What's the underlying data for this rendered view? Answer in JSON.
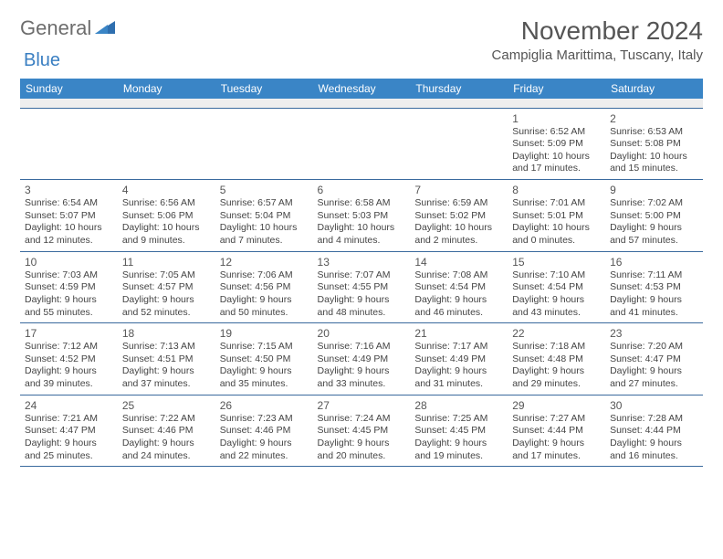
{
  "logo": {
    "word1": "General",
    "word2": "Blue"
  },
  "title": "November 2024",
  "location": "Campiglia Marittima, Tuscany, Italy",
  "colors": {
    "header_bg": "#3a85c6",
    "header_text": "#ffffff",
    "rule": "#3a6a9e",
    "logo_gray": "#6d6d6d",
    "logo_blue": "#3a7fc2",
    "spacer_bg": "#eeeeee"
  },
  "day_headers": [
    "Sunday",
    "Monday",
    "Tuesday",
    "Wednesday",
    "Thursday",
    "Friday",
    "Saturday"
  ],
  "weeks": [
    [
      null,
      null,
      null,
      null,
      null,
      {
        "n": "1",
        "sunrise": "6:52 AM",
        "sunset": "5:09 PM",
        "daylight": "10 hours and 17 minutes."
      },
      {
        "n": "2",
        "sunrise": "6:53 AM",
        "sunset": "5:08 PM",
        "daylight": "10 hours and 15 minutes."
      }
    ],
    [
      {
        "n": "3",
        "sunrise": "6:54 AM",
        "sunset": "5:07 PM",
        "daylight": "10 hours and 12 minutes."
      },
      {
        "n": "4",
        "sunrise": "6:56 AM",
        "sunset": "5:06 PM",
        "daylight": "10 hours and 9 minutes."
      },
      {
        "n": "5",
        "sunrise": "6:57 AM",
        "sunset": "5:04 PM",
        "daylight": "10 hours and 7 minutes."
      },
      {
        "n": "6",
        "sunrise": "6:58 AM",
        "sunset": "5:03 PM",
        "daylight": "10 hours and 4 minutes."
      },
      {
        "n": "7",
        "sunrise": "6:59 AM",
        "sunset": "5:02 PM",
        "daylight": "10 hours and 2 minutes."
      },
      {
        "n": "8",
        "sunrise": "7:01 AM",
        "sunset": "5:01 PM",
        "daylight": "10 hours and 0 minutes."
      },
      {
        "n": "9",
        "sunrise": "7:02 AM",
        "sunset": "5:00 PM",
        "daylight": "9 hours and 57 minutes."
      }
    ],
    [
      {
        "n": "10",
        "sunrise": "7:03 AM",
        "sunset": "4:59 PM",
        "daylight": "9 hours and 55 minutes."
      },
      {
        "n": "11",
        "sunrise": "7:05 AM",
        "sunset": "4:57 PM",
        "daylight": "9 hours and 52 minutes."
      },
      {
        "n": "12",
        "sunrise": "7:06 AM",
        "sunset": "4:56 PM",
        "daylight": "9 hours and 50 minutes."
      },
      {
        "n": "13",
        "sunrise": "7:07 AM",
        "sunset": "4:55 PM",
        "daylight": "9 hours and 48 minutes."
      },
      {
        "n": "14",
        "sunrise": "7:08 AM",
        "sunset": "4:54 PM",
        "daylight": "9 hours and 46 minutes."
      },
      {
        "n": "15",
        "sunrise": "7:10 AM",
        "sunset": "4:54 PM",
        "daylight": "9 hours and 43 minutes."
      },
      {
        "n": "16",
        "sunrise": "7:11 AM",
        "sunset": "4:53 PM",
        "daylight": "9 hours and 41 minutes."
      }
    ],
    [
      {
        "n": "17",
        "sunrise": "7:12 AM",
        "sunset": "4:52 PM",
        "daylight": "9 hours and 39 minutes."
      },
      {
        "n": "18",
        "sunrise": "7:13 AM",
        "sunset": "4:51 PM",
        "daylight": "9 hours and 37 minutes."
      },
      {
        "n": "19",
        "sunrise": "7:15 AM",
        "sunset": "4:50 PM",
        "daylight": "9 hours and 35 minutes."
      },
      {
        "n": "20",
        "sunrise": "7:16 AM",
        "sunset": "4:49 PM",
        "daylight": "9 hours and 33 minutes."
      },
      {
        "n": "21",
        "sunrise": "7:17 AM",
        "sunset": "4:49 PM",
        "daylight": "9 hours and 31 minutes."
      },
      {
        "n": "22",
        "sunrise": "7:18 AM",
        "sunset": "4:48 PM",
        "daylight": "9 hours and 29 minutes."
      },
      {
        "n": "23",
        "sunrise": "7:20 AM",
        "sunset": "4:47 PM",
        "daylight": "9 hours and 27 minutes."
      }
    ],
    [
      {
        "n": "24",
        "sunrise": "7:21 AM",
        "sunset": "4:47 PM",
        "daylight": "9 hours and 25 minutes."
      },
      {
        "n": "25",
        "sunrise": "7:22 AM",
        "sunset": "4:46 PM",
        "daylight": "9 hours and 24 minutes."
      },
      {
        "n": "26",
        "sunrise": "7:23 AM",
        "sunset": "4:46 PM",
        "daylight": "9 hours and 22 minutes."
      },
      {
        "n": "27",
        "sunrise": "7:24 AM",
        "sunset": "4:45 PM",
        "daylight": "9 hours and 20 minutes."
      },
      {
        "n": "28",
        "sunrise": "7:25 AM",
        "sunset": "4:45 PM",
        "daylight": "9 hours and 19 minutes."
      },
      {
        "n": "29",
        "sunrise": "7:27 AM",
        "sunset": "4:44 PM",
        "daylight": "9 hours and 17 minutes."
      },
      {
        "n": "30",
        "sunrise": "7:28 AM",
        "sunset": "4:44 PM",
        "daylight": "9 hours and 16 minutes."
      }
    ]
  ],
  "labels": {
    "sunrise": "Sunrise: ",
    "sunset": "Sunset: ",
    "daylight": "Daylight: "
  }
}
